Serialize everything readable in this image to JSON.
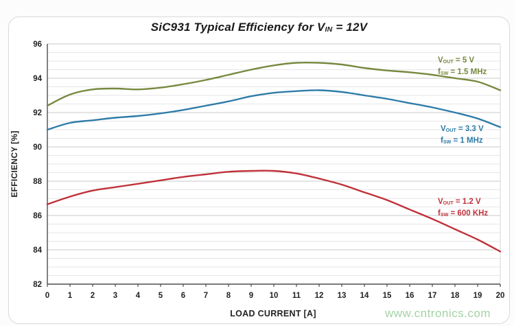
{
  "watermark": {
    "text": "www.cntronics.com",
    "color": "#a4d2a4"
  },
  "chart_data": {
    "type": "line",
    "title": {
      "main": "SiC931 Typical Efficiency for V",
      "sub": "IN",
      "rest": " = 12V"
    },
    "xlabel": "LOAD CURRENT [A]",
    "ylabel": "EFFICIENCY [%]",
    "xlim": [
      0,
      20
    ],
    "ylim": [
      82,
      96
    ],
    "x_ticks": [
      0,
      1,
      2,
      3,
      4,
      5,
      6,
      7,
      8,
      9,
      10,
      11,
      12,
      13,
      14,
      15,
      16,
      17,
      18,
      19,
      20
    ],
    "y_ticks": [
      96,
      94,
      92,
      90,
      88,
      86,
      84,
      82
    ],
    "grid": {
      "horizontal_minor_step": 0.5,
      "horizontal_major_step": 2,
      "vertical_gridlines": false
    },
    "legend_position": "inline-annotations-right",
    "x": [
      0,
      1,
      2,
      3,
      4,
      5,
      6,
      7,
      8,
      9,
      10,
      11,
      12,
      13,
      14,
      15,
      16,
      17,
      18,
      19,
      20
    ],
    "series": [
      {
        "name": "VOUT = 5 V, fSW = 1.5 MHz",
        "color": "#77883f",
        "values": [
          92.4,
          93.05,
          93.35,
          93.4,
          93.35,
          93.45,
          93.65,
          93.9,
          94.2,
          94.5,
          94.75,
          94.9,
          94.9,
          94.8,
          94.6,
          94.45,
          94.35,
          94.2,
          94.0,
          93.8,
          93.3
        ],
        "annotation": {
          "v_main": "V",
          "v_sub": "OUT",
          "v_rest": " = 5 V",
          "f_main": "f",
          "f_sub": "SW",
          "f_rest": " = 1.5 MHz"
        }
      },
      {
        "name": "VOUT = 3.3 V, fSW = 1 MHz",
        "color": "#2f7ca8",
        "values": [
          91.0,
          91.4,
          91.55,
          91.7,
          91.8,
          91.95,
          92.15,
          92.4,
          92.65,
          92.95,
          93.15,
          93.25,
          93.3,
          93.2,
          93.0,
          92.8,
          92.55,
          92.3,
          92.0,
          91.65,
          91.15
        ],
        "annotation": {
          "v_main": "V",
          "v_sub": "OUT",
          "v_rest": " = 3.3 V",
          "f_main": "f",
          "f_sub": "SW",
          "f_rest": " = 1 MHz"
        }
      },
      {
        "name": "VOUT = 1.2 V, fSW = 600 KHz",
        "color": "#c0313a",
        "values": [
          86.65,
          87.1,
          87.45,
          87.65,
          87.85,
          88.05,
          88.25,
          88.4,
          88.55,
          88.6,
          88.6,
          88.45,
          88.15,
          87.8,
          87.35,
          86.9,
          86.35,
          85.8,
          85.2,
          84.6,
          83.9
        ],
        "annotation": {
          "v_main": "V",
          "v_sub": "OUT",
          "v_rest": " = 1.2 V",
          "f_main": "f",
          "f_sub": "SW",
          "f_rest": " = 600 KHz"
        }
      }
    ],
    "style": {
      "axis_color": "#4d4d4d",
      "minor_grid_color": "#e6e6e6",
      "major_grid_color": "#c9c9c9",
      "right_border_color": "#d8d8d8",
      "tick_label_color": "#222222"
    }
  }
}
